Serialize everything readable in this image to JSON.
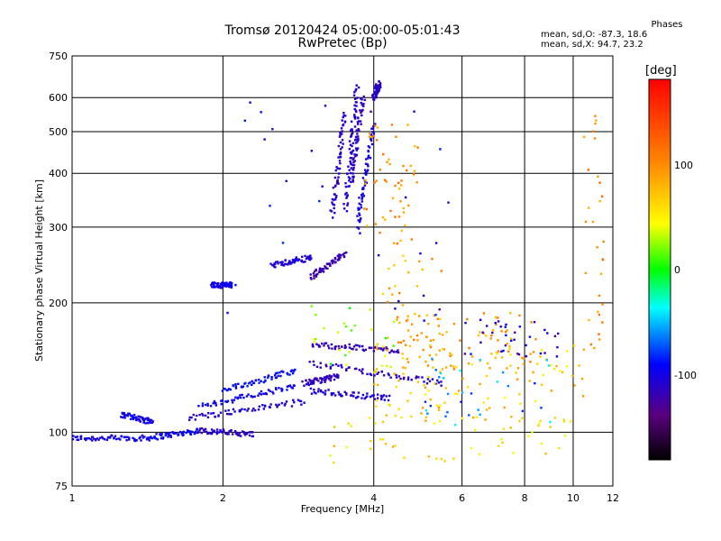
{
  "chart_data": {
    "type": "scatter",
    "title": "Tromsø 20120424 05:00:00-05:01:43",
    "subtitle": "RwPretec (Bp)",
    "xlabel": "Frequency [MHz]",
    "ylabel": "Stationary phase Virtual Height [km]",
    "x_scale": "log",
    "y_scale": "log",
    "xlim": [
      1,
      12
    ],
    "ylim": [
      75,
      750
    ],
    "x_ticks": [
      1,
      2,
      4,
      6,
      8,
      10,
      12
    ],
    "y_ticks": [
      75,
      100,
      200,
      300,
      400,
      500,
      600,
      750
    ],
    "grid": true,
    "colorbar": {
      "label": "[deg]",
      "range": [
        -180,
        180
      ],
      "ticks": [
        100,
        0,
        -100
      ]
    },
    "phases": {
      "heading": "Phases",
      "line1": "mean, sd,O: -87.3, 18.6",
      "line2": "mean, sd,X:  94.7, 23.2"
    },
    "traces": [
      {
        "x": [
          1.0,
          1.4
        ],
        "y": [
          97,
          97
        ],
        "phase": -100
      },
      {
        "x": [
          1.4,
          1.8
        ],
        "y": [
          97,
          101
        ],
        "phase": -95
      },
      {
        "x": [
          1.8,
          2.3
        ],
        "y": [
          101,
          99
        ],
        "phase": -110
      },
      {
        "x": [
          1.25,
          1.45
        ],
        "y": [
          110,
          106
        ],
        "phase": -100
      },
      {
        "x": [
          1.7,
          2.9
        ],
        "y": [
          108,
          118
        ],
        "phase": -105
      },
      {
        "x": [
          1.8,
          2.8
        ],
        "y": [
          115,
          128
        ],
        "phase": -95
      },
      {
        "x": [
          2.0,
          2.8
        ],
        "y": [
          125,
          140
        ],
        "phase": -90
      },
      {
        "x": [
          2.9,
          3.4
        ],
        "y": [
          130,
          135
        ],
        "phase": -115
      },
      {
        "x": [
          3.0,
          4.3
        ],
        "y": [
          125,
          120
        ],
        "phase": -105
      },
      {
        "x": [
          3.0,
          5.5
        ],
        "y": [
          145,
          130
        ],
        "phase": -110
      },
      {
        "x": [
          3.0,
          4.5
        ],
        "y": [
          160,
          155
        ],
        "phase": -115
      },
      {
        "x": [
          3.0,
          3.5
        ],
        "y": [
          230,
          260
        ],
        "phase": -120
      },
      {
        "x": [
          3.3,
          3.5
        ],
        "y": [
          320,
          550
        ],
        "phase": -110
      },
      {
        "x": [
          3.5,
          3.7
        ],
        "y": [
          330,
          640
        ],
        "phase": -105
      },
      {
        "x": [
          3.6,
          3.8
        ],
        "y": [
          380,
          600
        ],
        "phase": -112
      },
      {
        "x": [
          3.7,
          4.0
        ],
        "y": [
          300,
          520
        ],
        "phase": -100
      },
      {
        "x": [
          4.0,
          4.1
        ],
        "y": [
          600,
          650
        ],
        "phase": -110
      },
      {
        "x": [
          1.9,
          2.1
        ],
        "y": [
          220,
          220
        ],
        "phase": -100
      },
      {
        "x": [
          2.5,
          3.0
        ],
        "y": [
          245,
          255
        ],
        "phase": -105
      }
    ],
    "clusters": [
      {
        "x": [
          3.8,
          4.9
        ],
        "y": [
          270,
          520
        ],
        "phase": 95,
        "n": 55
      },
      {
        "x": [
          4.0,
          5.5
        ],
        "y": [
          150,
          260
        ],
        "phase": 85,
        "n": 45
      },
      {
        "x": [
          4.5,
          8.5
        ],
        "y": [
          140,
          190
        ],
        "phase": 90,
        "n": 70
      },
      {
        "x": [
          4.0,
          10.5
        ],
        "y": [
          105,
          160
        ],
        "phase": 70,
        "n": 110
      },
      {
        "x": [
          3.2,
          10.0
        ],
        "y": [
          85,
          110
        ],
        "phase": 60,
        "n": 45
      },
      {
        "x": [
          6.0,
          9.5
        ],
        "y": [
          150,
          185
        ],
        "phase": -110,
        "n": 35
      },
      {
        "x": [
          10.5,
          11.5
        ],
        "y": [
          150,
          600
        ],
        "phase": 100,
        "n": 30
      },
      {
        "x": [
          3.0,
          4.5
        ],
        "y": [
          140,
          200
        ],
        "phase": 20,
        "n": 25
      },
      {
        "x": [
          5.0,
          9.0
        ],
        "y": [
          100,
          150
        ],
        "phase": -60,
        "n": 30
      },
      {
        "x": [
          2.0,
          6.0
        ],
        "y": [
          180,
          600
        ],
        "phase": -105,
        "n": 30
      }
    ]
  }
}
